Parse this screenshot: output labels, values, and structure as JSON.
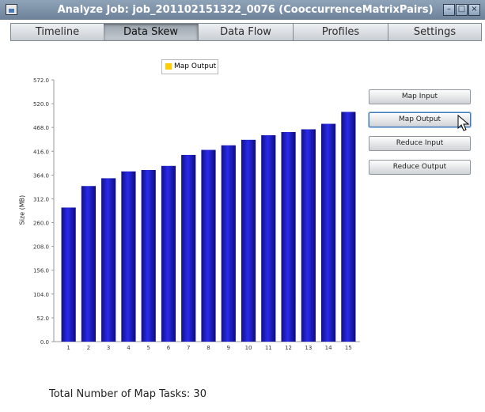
{
  "window": {
    "title": "Analyze Job: job_201102151322_0076 (CooccurrenceMatrixPairs)"
  },
  "tabs": [
    {
      "label": "Timeline"
    },
    {
      "label": "Data Skew"
    },
    {
      "label": "Data Flow"
    },
    {
      "label": "Profiles"
    },
    {
      "label": "Settings"
    }
  ],
  "active_tab": "Data Skew",
  "side_buttons": [
    {
      "label": "Map Input"
    },
    {
      "label": "Map Output"
    },
    {
      "label": "Reduce Input"
    },
    {
      "label": "Reduce Output"
    }
  ],
  "focused_button": "Map Output",
  "footer": {
    "text": "Total Number of Map Tasks: 30"
  },
  "colors": {
    "bar": "#1a1ad0",
    "legend_swatch": "#ffcc00",
    "title_bar": "#7b8fa6"
  },
  "icons": [
    "app-icon",
    "minimize-icon",
    "maximize-icon",
    "close-icon",
    "mouse-cursor-icon"
  ],
  "chart_data": {
    "type": "bar",
    "categories": [
      "1",
      "2",
      "3",
      "4",
      "5",
      "6",
      "7",
      "8",
      "9",
      "10",
      "11",
      "12",
      "13",
      "14",
      "15"
    ],
    "series": [
      {
        "name": "Map Output",
        "values": [
          293,
          340,
          357,
          372,
          375,
          384,
          408,
          419,
          429,
          441,
          451,
          458,
          464,
          476,
          502
        ]
      }
    ],
    "ylabel": "Size (MB)",
    "xlabel": "",
    "yticks": [
      "0.0",
      "52.0",
      "104.0",
      "156.0",
      "208.0",
      "260.0",
      "312.0",
      "364.0",
      "416.0",
      "468.0",
      "520.0",
      "572.0"
    ],
    "ylim": [
      0,
      572
    ],
    "legend_position": "top",
    "grid": false
  }
}
